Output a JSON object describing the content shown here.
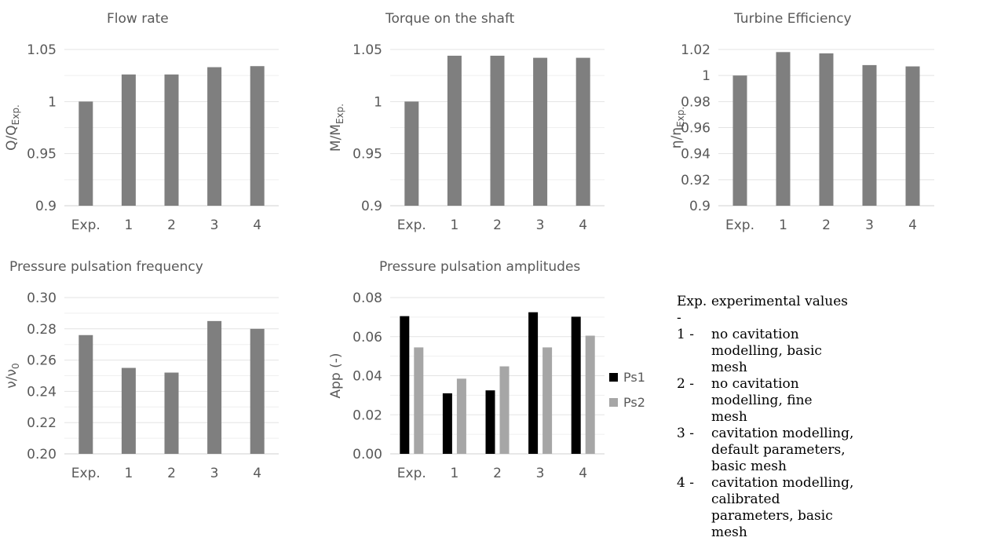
{
  "colors": {
    "bar": "#7f7f7f",
    "ps1": "#000000",
    "ps2": "#a6a6a6",
    "grid": "#e3e3e3",
    "text": "#595959"
  },
  "chart_data": [
    {
      "type": "bar",
      "title": "Flow rate",
      "ylabel_main": "Q/Q",
      "ylabel_sub": "Exp.",
      "categories": [
        "Exp.",
        "1",
        "2",
        "3",
        "4"
      ],
      "values": [
        1.0,
        1.026,
        1.026,
        1.033,
        1.034
      ],
      "ylim": [
        0.9,
        1.05
      ],
      "yticks": [
        "0.9",
        "0.95",
        "1",
        "1.05"
      ],
      "minor_grid": true
    },
    {
      "type": "bar",
      "title": "Torque on the shaft",
      "ylabel_main": "M/M",
      "ylabel_sub": "Exp.",
      "categories": [
        "Exp.",
        "1",
        "2",
        "3",
        "4"
      ],
      "values": [
        1.0,
        1.044,
        1.044,
        1.042,
        1.042
      ],
      "ylim": [
        0.9,
        1.05
      ],
      "yticks": [
        "0.9",
        "0.95",
        "1",
        "1.05"
      ],
      "minor_grid": true
    },
    {
      "type": "bar",
      "title": "Turbine Efficiency",
      "ylabel_main": "η/η",
      "ylabel_sub": "Exp.",
      "categories": [
        "Exp.",
        "1",
        "2",
        "3",
        "4"
      ],
      "values": [
        1.0,
        1.018,
        1.017,
        1.008,
        1.007
      ],
      "ylim": [
        0.9,
        1.02
      ],
      "yticks": [
        "0.9",
        "0.92",
        "0.94",
        "0.96",
        "0.98",
        "1",
        "1.02"
      ],
      "minor_grid": false
    },
    {
      "type": "bar",
      "title": "Pressure pulsation frequency",
      "ylabel_main": "ν/ν",
      "ylabel_sub": "0",
      "categories": [
        "Exp.",
        "1",
        "2",
        "3",
        "4"
      ],
      "values": [
        0.276,
        0.255,
        0.252,
        0.285,
        0.28
      ],
      "ylim": [
        0.2,
        0.3
      ],
      "yticks": [
        "0.20",
        "0.22",
        "0.24",
        "0.26",
        "0.28",
        "0.30"
      ],
      "minor_grid": true
    },
    {
      "type": "bar",
      "title": "Pressure pulsation amplitudes",
      "ylabel_main": "App (-)",
      "ylabel_sub": "",
      "categories": [
        "Exp.",
        "1",
        "2",
        "3",
        "4"
      ],
      "series": [
        {
          "name": "Ps1",
          "values": [
            0.0705,
            0.031,
            0.0325,
            0.0725,
            0.0702
          ]
        },
        {
          "name": "Ps2",
          "values": [
            0.0545,
            0.0385,
            0.0448,
            0.0545,
            0.0605
          ]
        }
      ],
      "ylim": [
        0.0,
        0.08
      ],
      "yticks": [
        "0.00",
        "0.02",
        "0.04",
        "0.06",
        "0.08"
      ],
      "minor_grid": true,
      "legend": "right"
    }
  ],
  "legend_text": [
    {
      "key": "Exp. -",
      "text": "experimental values"
    },
    {
      "key": "1 -",
      "text": "no cavitation modelling, basic mesh"
    },
    {
      "key": "2 -",
      "text": "no cavitation modelling, fine mesh"
    },
    {
      "key": "3 -",
      "text": "cavitation modelling, default parameters, basic mesh"
    },
    {
      "key": "4 -",
      "text": "cavitation modelling, calibrated parameters, basic mesh"
    }
  ]
}
